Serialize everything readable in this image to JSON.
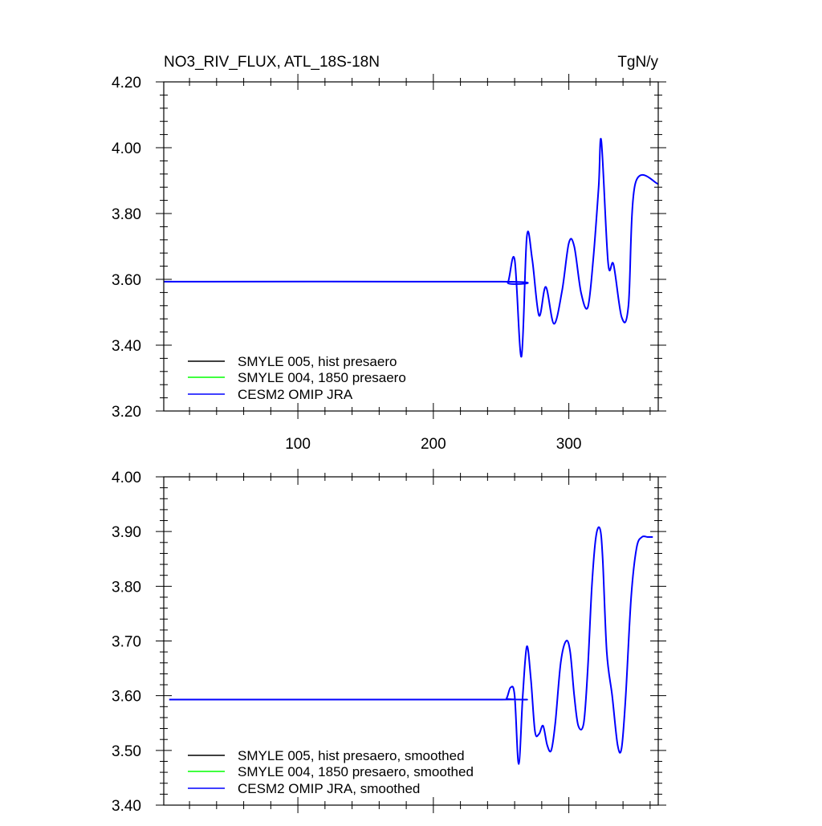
{
  "chart_data": [
    {
      "type": "line",
      "title": "NO3_RIV_FLUX, ATL_18S-18N",
      "units": "TgN/y",
      "xlim": [
        1,
        366
      ],
      "ylim": [
        3.2,
        4.2
      ],
      "xticks": [
        100,
        200,
        300
      ],
      "yticks": [
        3.2,
        3.4,
        3.6,
        3.8,
        4.0,
        4.2
      ],
      "ytick_labels": [
        "3.20",
        "3.40",
        "3.60",
        "3.80",
        "4.00",
        "4.20"
      ],
      "grid": false,
      "legend_position": "bottom-left",
      "legend": [
        "SMYLE 005, hist presaero",
        "SMYLE 004, 1850 presaero",
        "CESM2 OMIP JRA"
      ],
      "series": [
        {
          "name": "SMYLE 005, hist presaero",
          "color": "#000000",
          "x": [],
          "y": []
        },
        {
          "name": "SMYLE 004, 1850 presaero",
          "color": "#00ff00",
          "x": [],
          "y": []
        },
        {
          "name": "CESM2 OMIP JRA",
          "color": "#0000ff",
          "x": [
            1,
            250,
            255,
            260,
            265,
            269,
            273,
            278,
            283,
            289,
            295,
            300,
            304,
            309,
            314,
            318,
            322,
            324,
            329,
            333,
            339,
            344,
            349,
            366
          ],
          "y": [
            3.593,
            3.593,
            3.59,
            3.66,
            3.365,
            3.73,
            3.66,
            3.49,
            3.577,
            3.465,
            3.565,
            3.71,
            3.7,
            3.56,
            3.515,
            3.66,
            3.88,
            4.02,
            3.65,
            3.645,
            3.485,
            3.52,
            3.89,
            3.89
          ]
        }
      ]
    },
    {
      "type": "line",
      "xlim": [
        1,
        366
      ],
      "ylim": [
        3.4,
        4.0
      ],
      "xticks": [
        100,
        200,
        300
      ],
      "yticks": [
        3.4,
        3.5,
        3.6,
        3.7,
        3.8,
        3.9,
        4.0
      ],
      "ytick_labels": [
        "3.40",
        "3.50",
        "3.60",
        "3.70",
        "3.80",
        "3.90",
        "4.00"
      ],
      "grid": false,
      "legend_position": "bottom-left",
      "legend": [
        "SMYLE 005, hist presaero, smoothed",
        "SMYLE 004, 1850 presaero, smoothed",
        "CESM2 OMIP JRA, smoothed"
      ],
      "series": [
        {
          "name": "SMYLE 005, hist presaero, smoothed",
          "color": "#000000",
          "x": [],
          "y": []
        },
        {
          "name": "SMYLE 004, 1850 presaero, smoothed",
          "color": "#00ff00",
          "x": [],
          "y": []
        },
        {
          "name": "CESM2 OMIP JRA, smoothed",
          "color": "#0000ff",
          "x": [
            5,
            250,
            254,
            257,
            260,
            263,
            266,
            269,
            272,
            275,
            278,
            281,
            284,
            287,
            290,
            294,
            298,
            301,
            304,
            307,
            311,
            314,
            317,
            320,
            323,
            325,
            328,
            332,
            336,
            339,
            342,
            346,
            350,
            354,
            358,
            362
          ],
          "y": [
            3.593,
            3.593,
            3.595,
            3.615,
            3.6,
            3.475,
            3.6,
            3.69,
            3.63,
            3.535,
            3.53,
            3.545,
            3.51,
            3.5,
            3.55,
            3.66,
            3.7,
            3.68,
            3.6,
            3.545,
            3.55,
            3.65,
            3.8,
            3.89,
            3.905,
            3.85,
            3.68,
            3.6,
            3.51,
            3.505,
            3.6,
            3.78,
            3.87,
            3.89,
            3.89,
            3.89
          ]
        }
      ]
    }
  ]
}
